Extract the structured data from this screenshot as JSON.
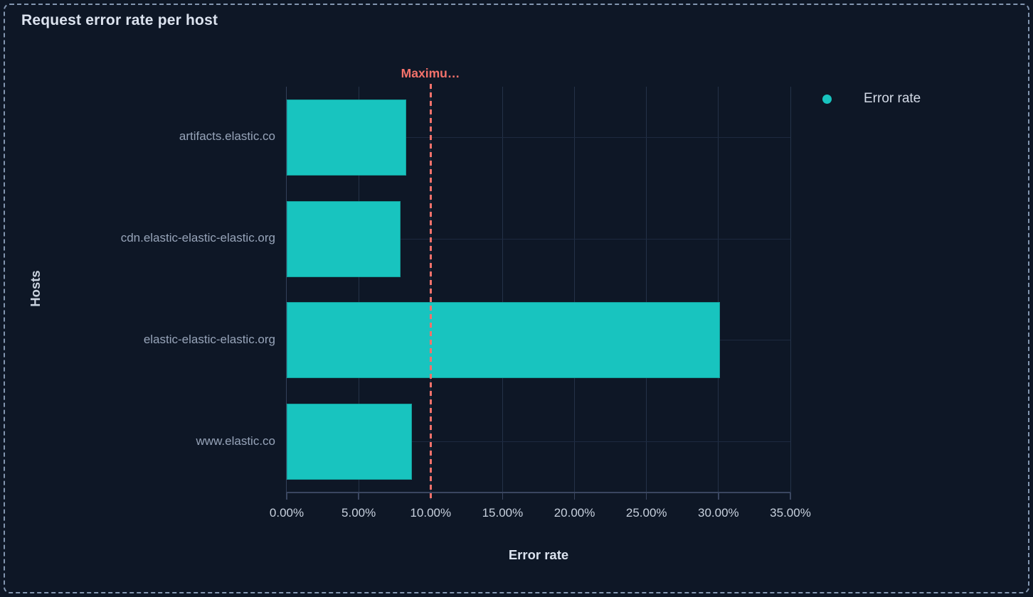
{
  "panel": {
    "title": "Request error rate per host"
  },
  "legend": {
    "items": [
      {
        "label": "Error rate",
        "color": "#18C4BF"
      }
    ]
  },
  "chart_data": {
    "type": "bar",
    "orientation": "horizontal",
    "title": "Request error rate per host",
    "categories": [
      "artifacts.elastic.co",
      "cdn.elastic-elastic-elastic.org",
      "elastic-elastic-elastic.org",
      "www.elastic.co"
    ],
    "series": [
      {
        "name": "Error rate",
        "values": [
          8.3,
          7.9,
          30.1,
          8.7
        ],
        "color": "#18C4BF"
      }
    ],
    "xlabel": "Error rate",
    "ylabel": "Hosts",
    "xlim": [
      0,
      35
    ],
    "x_ticks": [
      0,
      5,
      10,
      15,
      20,
      25,
      30,
      35
    ],
    "x_tick_labels": [
      "0.00%",
      "5.00%",
      "10.00%",
      "15.00%",
      "20.00%",
      "25.00%",
      "30.00%",
      "35.00%"
    ],
    "grid": true,
    "legend_position": "top-right",
    "annotation": {
      "type": "vline",
      "label": "Maximu…",
      "value": 10,
      "style": "dashed",
      "color": "#F5726B"
    }
  },
  "colors": {
    "background": "#0E1726",
    "panel_border": "#8396B0",
    "bar": "#18C4BF",
    "annotation": "#F5726B",
    "gridline_vertical": "#243248",
    "gridline_horizontal": "#1D2940",
    "axis_line": "#3A4660",
    "title_text": "#DCE3EF",
    "tick_label_text": "#C7D0DD",
    "category_label_text": "#97A4B9",
    "legend_text": "#D3DAE6"
  }
}
